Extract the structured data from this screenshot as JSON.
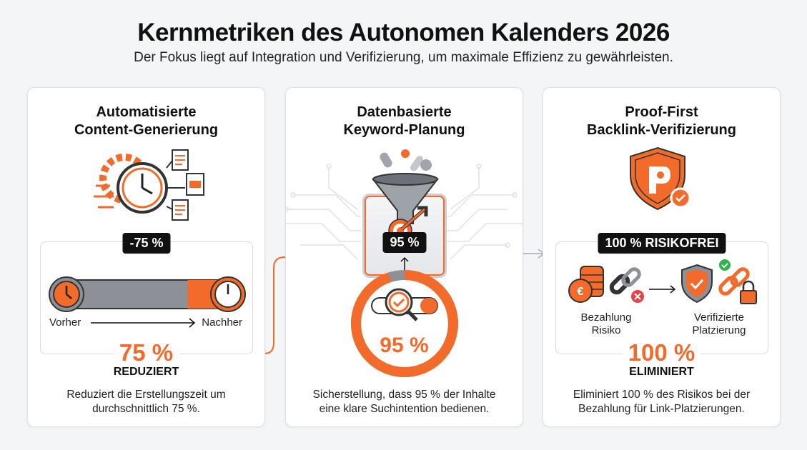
{
  "header": {
    "title": "Kernmetriken des Autonomen Kalenders 2026",
    "subtitle": "Der Fokus liegt auf Integration und Verifizierung, um maximale Effizienz zu gewährleisten."
  },
  "colors": {
    "accent": "#f26b2a",
    "dark": "#111111",
    "gray": "#8a8f98"
  },
  "cards": [
    {
      "title_line1": "Automatisierte",
      "title_line2": "Content-Generierung",
      "badge": "-75 %",
      "before_label": "Vorher",
      "after_label": "Nachher",
      "reduction_percent": 75,
      "big_value": "75 %",
      "big_label": "REDUZIERT",
      "desc_line1": "Reduziert die Erstellungszeit um",
      "desc_line2": "durchschnittlich 75 %.",
      "icon": "gear-clock-documents-icon"
    },
    {
      "title_line1": "Datenbasierte",
      "title_line2": "Keyword-Planung",
      "badge": "95 %",
      "ring_percent": 95,
      "big_value": "95 %",
      "desc_line1": "Sicherstellung, dass 95 % der Inhalte",
      "desc_line2": "eine klare Suchintention bedienen.",
      "icon": "funnel-target-icon"
    },
    {
      "title_line1": "Proof-First",
      "title_line2": "Backlink-Verifizierung",
      "badge": "100 % RISIKOFREI",
      "left_label_line1": "Bezahlung",
      "left_label_line2": "Risiko",
      "right_label_line1": "Verifizierte",
      "right_label_line2": "Platzierung",
      "big_value": "100 %",
      "big_label": "ELIMINIERT",
      "desc_line1": "Eliminiert 100 % des Risikos bei der",
      "desc_line2": "Bezahlung für Link-Platzierungen.",
      "icon": "shield-check-icon"
    }
  ]
}
